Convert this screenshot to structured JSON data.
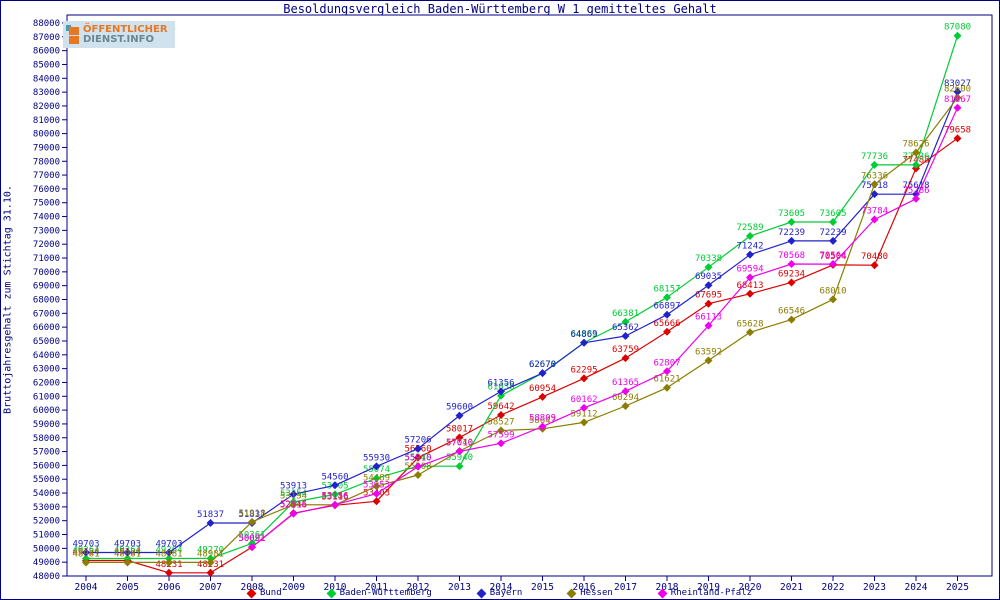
{
  "header": {
    "title": "Besoldungsvergleich Baden-Württemberg W 1 gemitteltes Gehalt",
    "logo": {
      "line1": "ÖFFENTLICHER",
      "line2": "DIENST.INFO"
    }
  },
  "chart_data": {
    "type": "line",
    "title": "Besoldungsvergleich Baden-Württemberg W 1 gemitteltes Gehalt",
    "xlabel": "",
    "ylabel": "Bruttojahresgehalt zum Stichtag 31.10.",
    "ylim": [
      48000,
      88000
    ],
    "ytick_step": 1000,
    "grid": false,
    "legend_position": "bottom",
    "axis_color": "#000080",
    "years": [
      2004,
      2005,
      2006,
      2007,
      2008,
      2009,
      2010,
      2011,
      2012,
      2013,
      2014,
      2015,
      2016,
      2017,
      2018,
      2019,
      2020,
      2021,
      2022,
      2023,
      2024,
      2025
    ],
    "series": [
      {
        "name": "Bund",
        "color": "#dd0000",
        "values": [
          49124,
          49124,
          48231,
          48231,
          50091,
          52545,
          53116,
          53403,
          56560,
          58017,
          59642,
          60954,
          62295,
          63759,
          65666,
          67695,
          68413,
          69234,
          70504,
          70480,
          77488,
          79658
        ]
      },
      {
        "name": "Baden-Württemberg",
        "color": "#00cc33",
        "values": [
          49264,
          49264,
          49264,
          49270,
          50361,
          53354,
          53905,
          55074,
          55940,
          55940,
          61038,
          62678,
          64883,
          66381,
          68157,
          70338,
          72589,
          73605,
          73605,
          77736,
          77736,
          87080
        ]
      },
      {
        "name": "Bayern",
        "color": "#2222cc",
        "values": [
          49703,
          49703,
          49703,
          51837,
          51837,
          53913,
          54560,
          55930,
          57206,
          59600,
          61356,
          62670,
          64869,
          65362,
          66897,
          69035,
          71242,
          72239,
          72239,
          75618,
          75618,
          83027
        ]
      },
      {
        "name": "Hessen",
        "color": "#8b7d00",
        "values": [
          48981,
          48981,
          48981,
          48981,
          51918,
          53154,
          53146,
          54489,
          55308,
          57040,
          58527,
          58647,
          59112,
          60294,
          61621,
          63592,
          65628,
          66546,
          68010,
          76336,
          78626,
          82600
        ]
      },
      {
        "name": "Rheinland-Pfalz",
        "color": "#ee00ee",
        "values": [
          null,
          null,
          null,
          null,
          50091,
          52516,
          53156,
          53953,
          55910,
          57010,
          57599,
          58809,
          60162,
          61365,
          62807,
          66113,
          69594,
          70568,
          70564,
          73784,
          75286,
          81867
        ]
      }
    ]
  }
}
